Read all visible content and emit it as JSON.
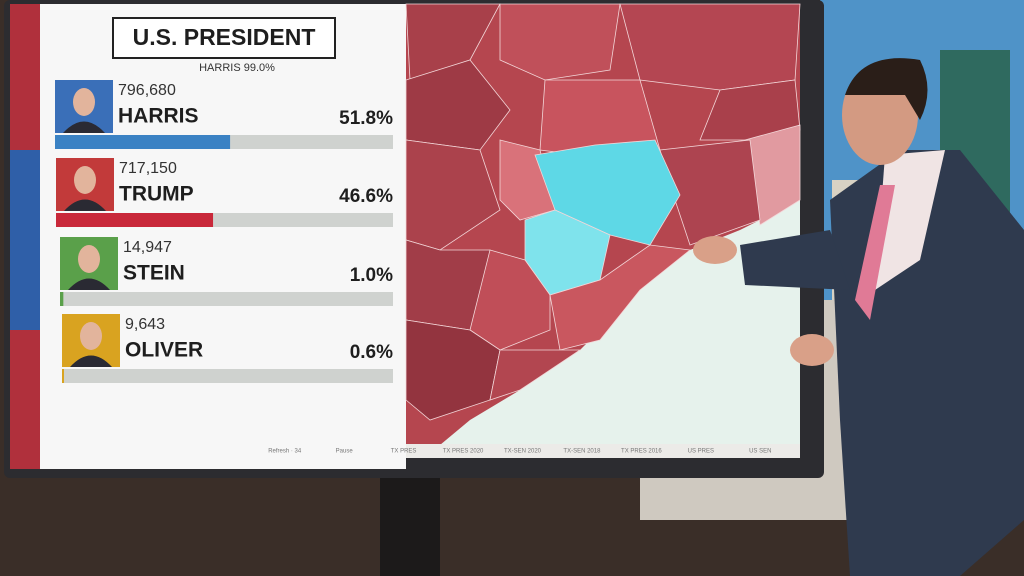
{
  "header": {
    "title": "U.S. PRESIDENT",
    "reporting": "HARRIS 99.0%"
  },
  "candidates": [
    {
      "name": "HARRIS",
      "votes": "796,680",
      "share": {
        "value": 51.8,
        "label": "51.8%"
      },
      "color": "#3b82c4",
      "photo_color": "#3a6fb8"
    },
    {
      "name": "TRUMP",
      "votes": "717,150",
      "share": {
        "value": 46.6,
        "label": "46.6%"
      },
      "color": "#c9283a",
      "photo_color": "#c23a3a"
    },
    {
      "name": "STEIN",
      "votes": "14,947",
      "share": {
        "value": 1.0,
        "label": "1.0%"
      },
      "color": "#5aa04a",
      "photo_color": "#5aa04a"
    },
    {
      "name": "OLIVER",
      "votes": "9,643",
      "share": {
        "value": 0.6,
        "label": "0.6%"
      },
      "color": "#d9a320",
      "photo_color": "#d9a320"
    }
  ],
  "toolbar": [
    "Refresh · 34",
    "Pause",
    "TX PRES",
    "TX PRES 2020",
    "TX-SEN 2020",
    "TX-SEN 2018",
    "TX PRES 2016",
    "US PRES",
    "US SEN"
  ]
}
